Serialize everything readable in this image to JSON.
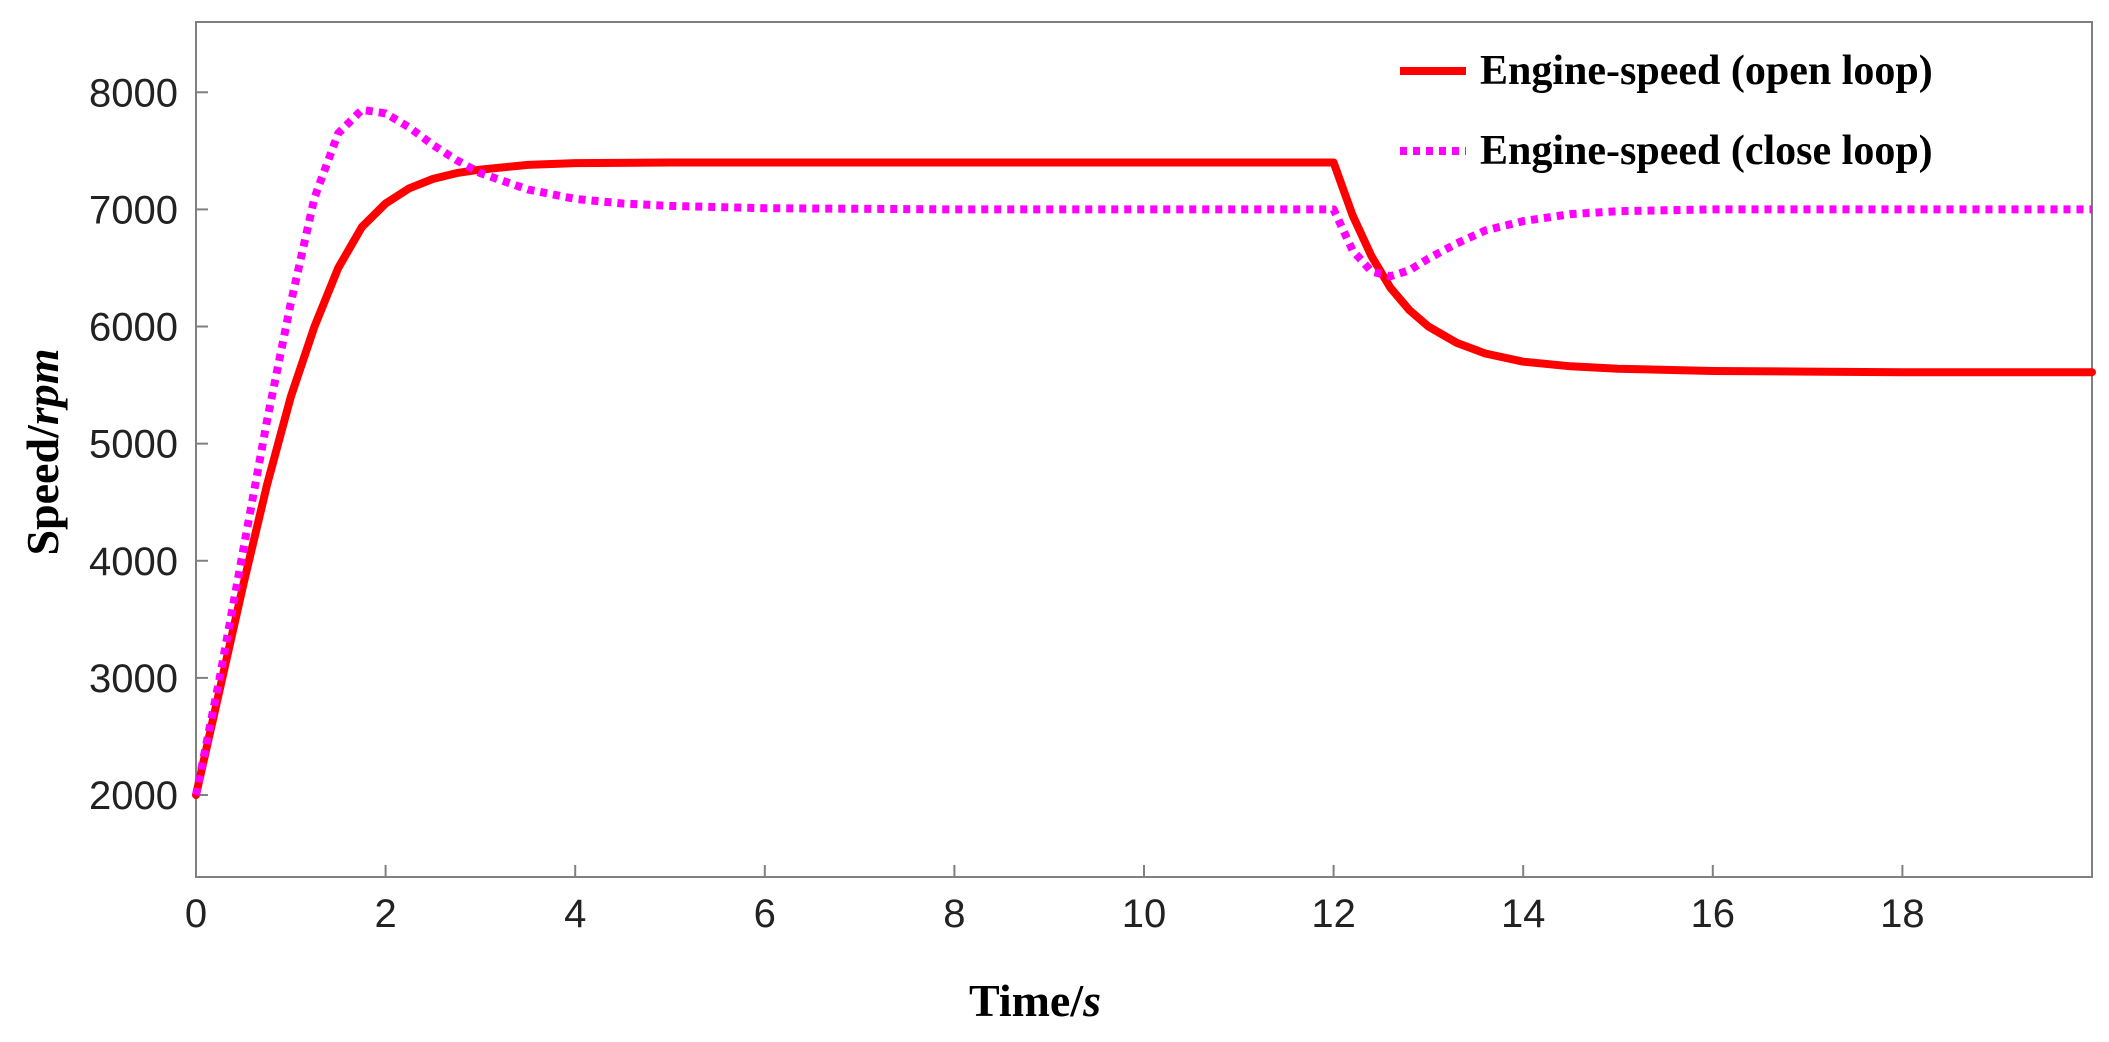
{
  "chart_data": {
    "type": "line",
    "xlabel": {
      "main": "Time/",
      "unit": "s"
    },
    "ylabel": {
      "main": "Speed/",
      "unit": "rpm"
    },
    "xlim": [
      0,
      20
    ],
    "ylim": [
      1300,
      8600
    ],
    "xticks": [
      0,
      2,
      4,
      6,
      8,
      10,
      12,
      14,
      16,
      18
    ],
    "yticks": [
      2000,
      3000,
      4000,
      5000,
      6000,
      7000,
      8000
    ],
    "grid": false,
    "legend_position": "top-right",
    "series": [
      {
        "name": "Engine-speed (open loop)",
        "color": "#ff0000",
        "style": "solid",
        "x": [
          0,
          0.25,
          0.5,
          0.75,
          1,
          1.25,
          1.5,
          1.75,
          2,
          2.25,
          2.5,
          2.75,
          3,
          3.5,
          4,
          5,
          6,
          8,
          10,
          11.5,
          12,
          12.2,
          12.4,
          12.6,
          12.8,
          13,
          13.3,
          13.6,
          14,
          14.5,
          15,
          16,
          17,
          18,
          20
        ],
        "y": [
          2000,
          2900,
          3800,
          4650,
          5400,
          6000,
          6500,
          6850,
          7050,
          7180,
          7260,
          7310,
          7340,
          7380,
          7395,
          7400,
          7400,
          7400,
          7400,
          7400,
          7400,
          6950,
          6600,
          6330,
          6140,
          6000,
          5860,
          5770,
          5700,
          5660,
          5640,
          5620,
          5615,
          5610,
          5610
        ]
      },
      {
        "name": "Engine-speed (close loop)",
        "color": "#ff00ff",
        "style": "dotted",
        "x": [
          0,
          0.25,
          0.5,
          0.75,
          1,
          1.25,
          1.5,
          1.75,
          2,
          2.25,
          2.5,
          2.75,
          3,
          3.5,
          4,
          4.5,
          5,
          6,
          8,
          10,
          11.5,
          12,
          12.2,
          12.4,
          12.6,
          12.8,
          13,
          13.3,
          13.6,
          14,
          14.5,
          15,
          16,
          17,
          18,
          20
        ],
        "y": [
          2000,
          3000,
          4100,
          5200,
          6200,
          7100,
          7650,
          7850,
          7820,
          7700,
          7550,
          7420,
          7310,
          7170,
          7090,
          7050,
          7030,
          7010,
          7000,
          7000,
          7000,
          7000,
          6650,
          6470,
          6430,
          6480,
          6580,
          6710,
          6820,
          6900,
          6960,
          6985,
          7000,
          7000,
          7000,
          7000
        ]
      }
    ]
  }
}
